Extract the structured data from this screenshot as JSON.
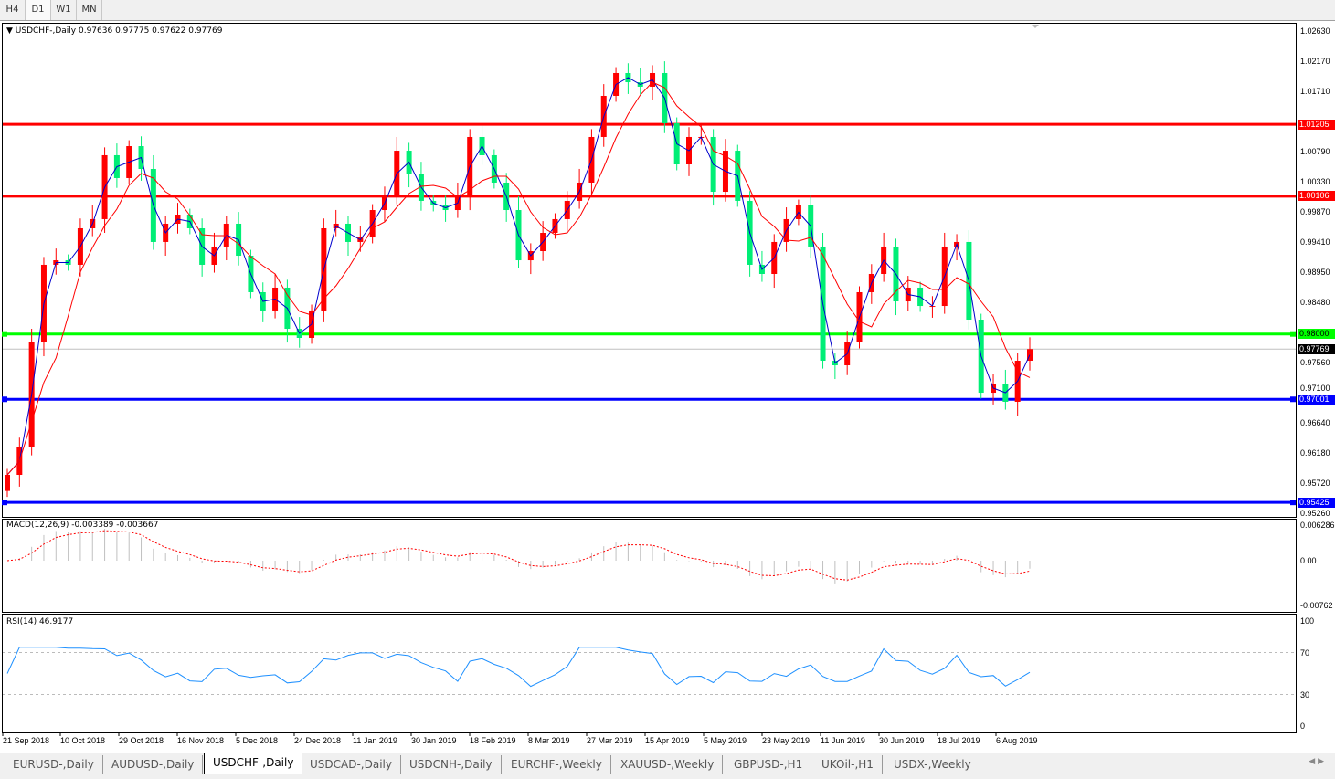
{
  "timeframes": [
    "H4",
    "D1",
    "W1",
    "MN"
  ],
  "legend": "USDCHF-,Daily  0.97636 0.97775 0.97622 0.97769",
  "macd_label": "MACD(12,26,9) -0.003389 -0.003667",
  "rsi_label": "RSI(14) 46.9177",
  "price_ticks": [
    "1.02630",
    "1.02170",
    "1.01710",
    "1.00790",
    "1.00330",
    "0.99870",
    "0.99410",
    "0.98950",
    "0.98480",
    "0.97560",
    "0.97100",
    "0.96640",
    "0.96180",
    "0.95720",
    "0.95260"
  ],
  "levels": [
    {
      "label": "1.01205",
      "value": 1.01205,
      "color": "#ff0000"
    },
    {
      "label": "1.00106",
      "value": 1.00106,
      "color": "#ff0000"
    },
    {
      "label": "0.98000",
      "value": 0.98,
      "color": "#00ff00"
    },
    {
      "label": "0.97001",
      "value": 0.97001,
      "color": "#0000ff"
    },
    {
      "label": "0.95425",
      "value": 0.95425,
      "color": "#0000ff"
    }
  ],
  "current_price": {
    "label": "0.97769",
    "value": 0.97769
  },
  "macd_ticks": [
    "0.006286",
    "0.00",
    "-0.00762"
  ],
  "rsi_ticks": [
    "100",
    "70",
    "30",
    "0"
  ],
  "date_labels": [
    "21 Sep 2018",
    "10 Oct 2018",
    "29 Oct 2018",
    "16 Nov 2018",
    "5 Dec 2018",
    "24 Dec 2018",
    "11 Jan 2019",
    "30 Jan 2019",
    "18 Feb 2019",
    "8 Mar 2019",
    "27 Mar 2019",
    "15 Apr 2019",
    "5 May 2019",
    "23 May 2019",
    "11 Jun 2019",
    "30 Jun 2019",
    "18 Jul 2019",
    "6 Aug 2019"
  ],
  "tabs": [
    "EURUSD-,Daily",
    "AUDUSD-,Daily",
    "USDCHF-,Daily",
    "USDCAD-,Daily",
    "USDCNH-,Daily",
    "EURCHF-,Weekly",
    "XAUUSD-,Weekly",
    "GBPUSD-,H1",
    "UKOil-,H1",
    "USDX-,Weekly"
  ],
  "active_tab": 2,
  "colors": {
    "bull": "#ff0000",
    "bear": "#00ee76",
    "ma_fast": "#0000cc",
    "ma_slow": "#ff0000",
    "macd_hist": "#c0c0c0",
    "macd_signal": "#ff0000",
    "rsi": "#1e90ff"
  },
  "chart_data": {
    "type": "candlestick",
    "symbol": "USDCHF-",
    "timeframe": "Daily",
    "ylim": [
      0.9526,
      1.0263
    ],
    "close": [
      0.95846,
      0.96265,
      0.9787,
      0.99057,
      0.99126,
      0.99057,
      0.99615,
      0.99755,
      1.00732,
      1.00383,
      1.00871,
      1.00522,
      0.99406,
      0.99685,
      0.99824,
      0.99615,
      0.99057,
      0.99336,
      0.99685,
      0.99196,
      0.98638,
      0.98359,
      0.98708,
      0.98079,
      0.9794,
      0.98359,
      0.99615,
      0.99685,
      0.99406,
      0.99475,
      0.99894,
      1.00103,
      1.00801,
      1.00452,
      1.00034,
      0.99964,
      0.99894,
      1.00103,
      1.01011,
      1.00732,
      1.00313,
      0.99894,
      0.99126,
      0.99266,
      0.99545,
      0.99755,
      1.00034,
      1.00313,
      1.01011,
      1.01639,
      1.01988,
      1.01848,
      1.01779,
      1.01988,
      1.0122,
      1.00592,
      1.01011,
      1.01011,
      1.00173,
      1.00801,
      1.00034,
      0.99057,
      0.98917,
      0.99406,
      0.99755,
      0.99964,
      0.99336,
      0.97591,
      0.97521,
      0.9787,
      0.98638,
      0.98917,
      0.99336,
      0.98498,
      0.98708,
      0.98428,
      0.98428,
      0.99336,
      0.99406,
      0.98219,
      0.97102,
      0.97242,
      0.96963,
      0.97591,
      0.97769
    ],
    "macd_range": [
      -0.00762,
      0.006286
    ],
    "rsi_range": [
      0,
      100
    ],
    "rsi_levels": [
      70,
      30
    ]
  }
}
